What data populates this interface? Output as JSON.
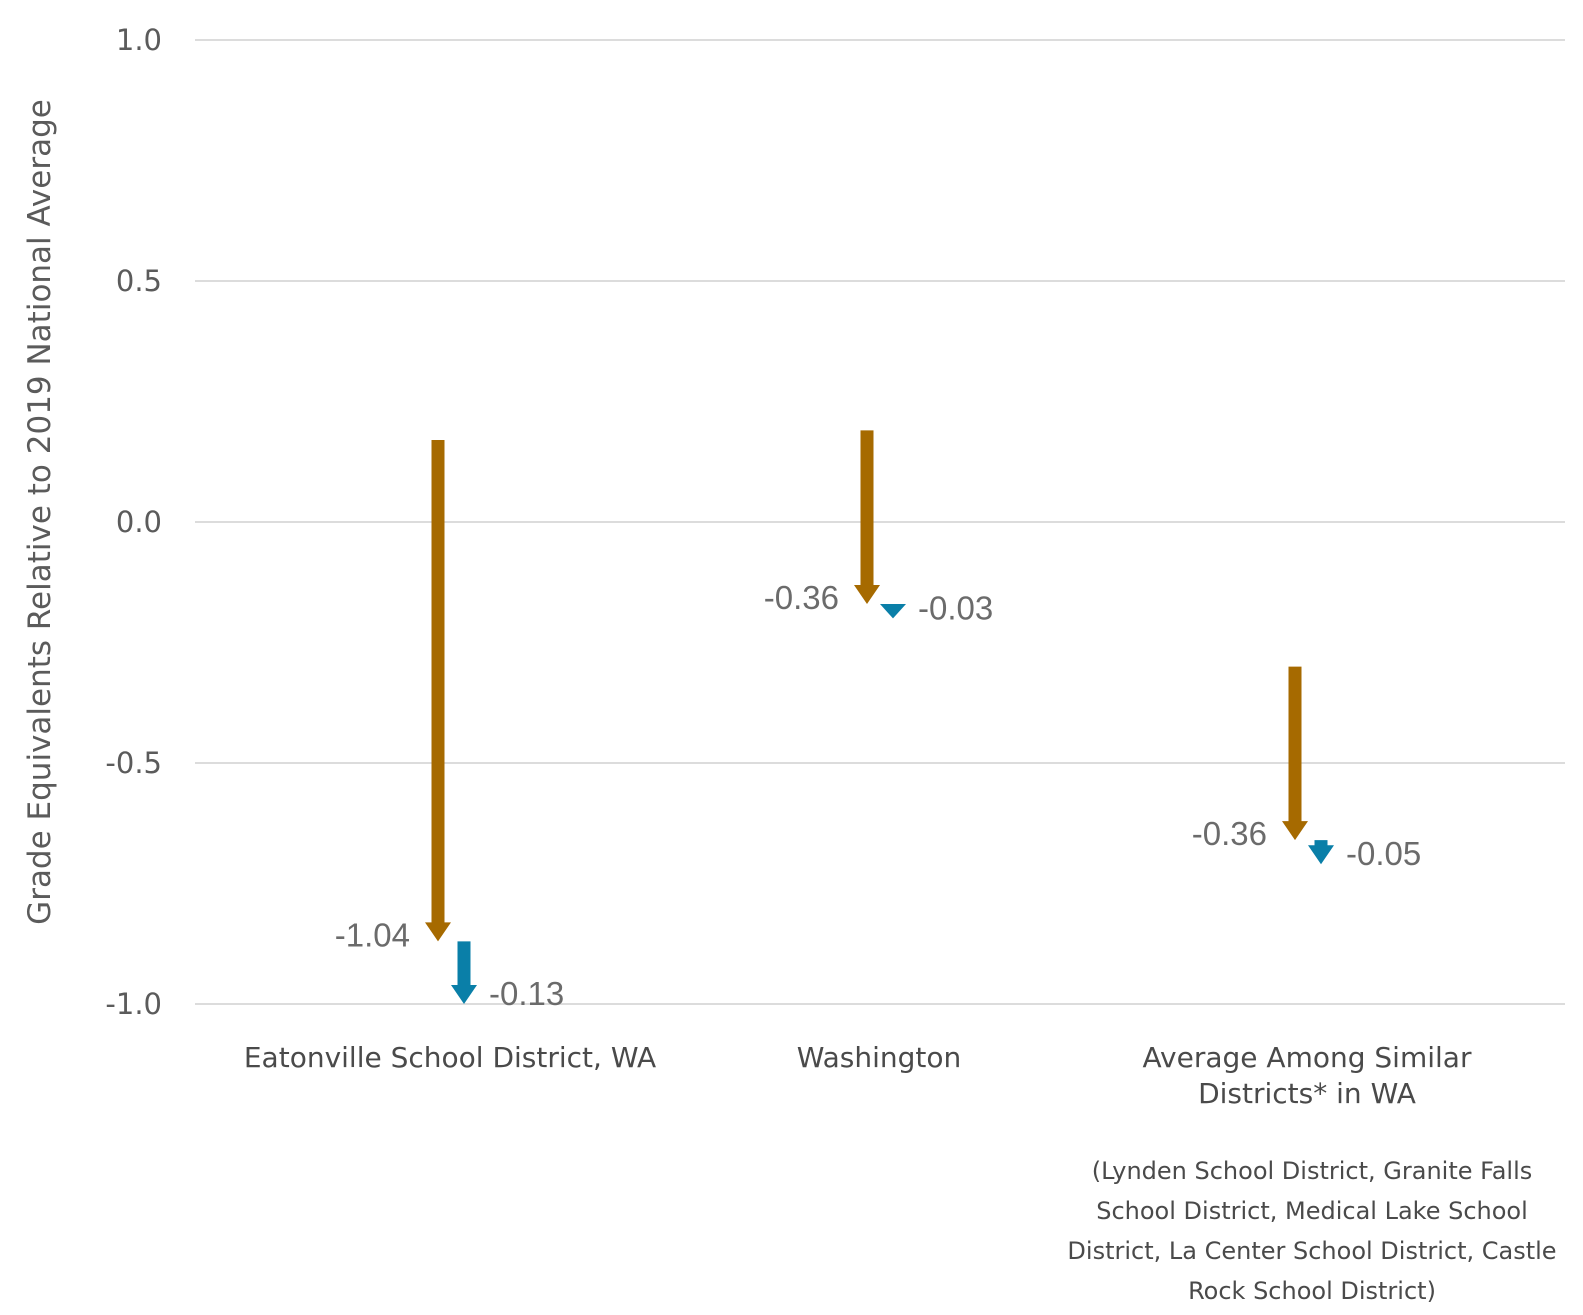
{
  "chart_data": {
    "type": "arrow",
    "ylabel": "Grade Equivalents Relative to 2019 National Average",
    "ylim": [
      -1.0,
      1.0
    ],
    "yticks": [
      {
        "value": 1.0,
        "label": "1.0"
      },
      {
        "value": 0.5,
        "label": "0.5"
      },
      {
        "value": 0.0,
        "label": "0.0"
      },
      {
        "value": -0.5,
        "label": "-0.5"
      },
      {
        "value": -1.0,
        "label": "-1.0"
      }
    ],
    "grid": true,
    "colors": {
      "first_change": "#a66a00",
      "second_change": "#0a7fa8"
    },
    "categories": [
      {
        "label_lines": [
          "Eatonville School District, WA"
        ],
        "note_lines": [],
        "first": {
          "start": 0.17,
          "end": -0.87,
          "label": "-1.04"
        },
        "second": {
          "start": -0.87,
          "end": -1.0,
          "label": "-0.13"
        }
      },
      {
        "label_lines": [
          "Washington"
        ],
        "note_lines": [],
        "first": {
          "start": 0.19,
          "end": -0.17,
          "label": "-0.36"
        },
        "second": {
          "start": -0.17,
          "end": -0.2,
          "label": "-0.03"
        }
      },
      {
        "label_lines": [
          "Average Among Similar",
          "Districts* in WA"
        ],
        "note_lines": [
          "(Lynden School District, Granite Falls",
          "School District, Medical Lake School",
          "District, La Center School District, Castle",
          "Rock School District)"
        ],
        "first": {
          "start": -0.3,
          "end": -0.66,
          "label": "-0.36"
        },
        "second": {
          "start": -0.66,
          "end": -0.71,
          "label": "-0.05"
        }
      }
    ]
  }
}
